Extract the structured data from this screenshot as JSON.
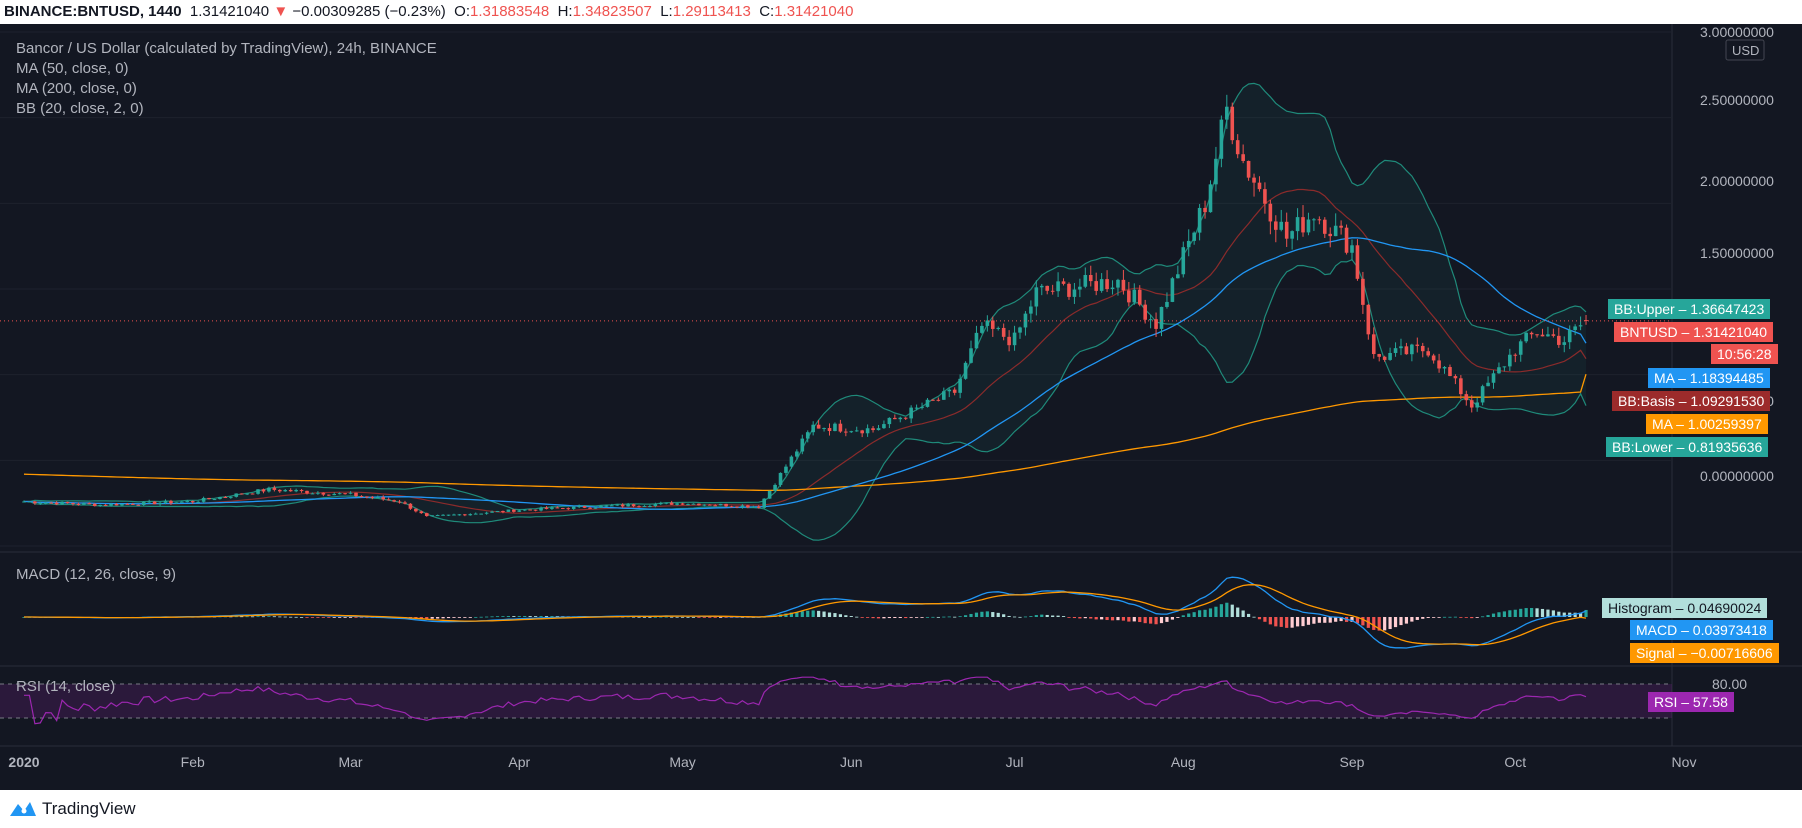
{
  "header": {
    "symbol": "BINANCE:BNTUSD, 1440",
    "last": "1.31421040",
    "arrow": "▼",
    "change": "−0.00309285 (−0.23%)",
    "o_label": "O:",
    "o": "1.31883548",
    "h_label": "H:",
    "h": "1.34823507",
    "l_label": "L:",
    "l": "1.29113413",
    "c_label": "C:",
    "c": "1.31421040"
  },
  "legend": {
    "title": "Bancor / US Dollar (calculated by TradingView), 24h, BINANCE",
    "ma50": "MA (50, close, 0)",
    "ma200": "MA (200, close, 0)",
    "bb": "BB (20, close, 2, 0)",
    "macd": "MACD (12, 26, close, 9)",
    "rsi": "RSI (14, close)"
  },
  "price_axis": {
    "currency": "USD",
    "ticks": [
      "3.00000000",
      "2.50000000",
      "2.00000000",
      "1.50000000",
      "0.50000000",
      "0.00000000"
    ]
  },
  "rsi_axis": {
    "tick": "80.00"
  },
  "time_axis": [
    "2020",
    "Feb",
    "Mar",
    "Apr",
    "May",
    "Jun",
    "Jul",
    "Aug",
    "Sep",
    "Oct",
    "Nov"
  ],
  "price_tags": [
    {
      "text": "BB:Upper – 1.36647423",
      "bg": "#26a69a"
    },
    {
      "text": "BNTUSD – 1.31421040",
      "bg": "#ef5350"
    },
    {
      "text": "10:56:28",
      "bg": "#ef5350"
    },
    {
      "text": "MA – 1.18394485",
      "bg": "#2196f3"
    },
    {
      "text": "BB:Basis – 1.09291530",
      "bg": "#9c2b2b"
    },
    {
      "text": "MA – 1.00259397",
      "bg": "#ff9800"
    },
    {
      "text": "BB:Lower – 0.81935636",
      "bg": "#26a69a"
    }
  ],
  "macd_tags": [
    {
      "text": "Histogram – 0.04690024",
      "bg": "#b2dfdb",
      "fg": "#131722"
    },
    {
      "text": "MACD – 0.03973418",
      "bg": "#2196f3",
      "fg": "#ffffff"
    },
    {
      "text": "Signal – −0.00716606",
      "bg": "#ff9800",
      "fg": "#ffffff"
    }
  ],
  "rsi_tag": {
    "text": "RSI – 57.58",
    "bg": "#9c27b0"
  },
  "footer": {
    "brand": "TradingView"
  },
  "colors": {
    "up": "#26a69a",
    "down": "#ef5350",
    "ma50": "#2196f3",
    "ma200": "#ff9800",
    "bb_band": "#1f8a7a",
    "bb_basis": "#8b2b2b",
    "rsi": "#9c27b0"
  },
  "chart_data": {
    "type": "candlestick",
    "x_range": [
      "2020-01-01",
      "2020-11-01"
    ],
    "y_range": [
      0,
      3.0
    ],
    "close_path": [
      {
        "date": "2020-01-01",
        "close": 0.26
      },
      {
        "date": "2020-01-15",
        "close": 0.24
      },
      {
        "date": "2020-02-01",
        "close": 0.26
      },
      {
        "date": "2020-02-15",
        "close": 0.33
      },
      {
        "date": "2020-03-01",
        "close": 0.3
      },
      {
        "date": "2020-03-10",
        "close": 0.26
      },
      {
        "date": "2020-03-15",
        "close": 0.17
      },
      {
        "date": "2020-04-01",
        "close": 0.21
      },
      {
        "date": "2020-04-15",
        "close": 0.23
      },
      {
        "date": "2020-05-01",
        "close": 0.25
      },
      {
        "date": "2020-05-15",
        "close": 0.23
      },
      {
        "date": "2020-05-25",
        "close": 0.7
      },
      {
        "date": "2020-06-05",
        "close": 0.68
      },
      {
        "date": "2020-06-20",
        "close": 0.9
      },
      {
        "date": "2020-06-25",
        "close": 1.28
      },
      {
        "date": "2020-07-01",
        "close": 1.2
      },
      {
        "date": "2020-07-05",
        "close": 1.48
      },
      {
        "date": "2020-07-20",
        "close": 1.55
      },
      {
        "date": "2020-07-27",
        "close": 1.3
      },
      {
        "date": "2020-08-05",
        "close": 2.0
      },
      {
        "date": "2020-08-09",
        "close": 2.55
      },
      {
        "date": "2020-08-12",
        "close": 2.25
      },
      {
        "date": "2020-08-20",
        "close": 1.8
      },
      {
        "date": "2020-08-25",
        "close": 1.95
      },
      {
        "date": "2020-09-01",
        "close": 1.75
      },
      {
        "date": "2020-09-05",
        "close": 1.1
      },
      {
        "date": "2020-09-15",
        "close": 1.15
      },
      {
        "date": "2020-09-23",
        "close": 0.82
      },
      {
        "date": "2020-10-01",
        "close": 1.15
      },
      {
        "date": "2020-10-05",
        "close": 1.25
      },
      {
        "date": "2020-10-10",
        "close": 1.2
      },
      {
        "date": "2020-10-14",
        "close": 1.3142
      }
    ],
    "last": {
      "open": 1.31883548,
      "high": 1.34823507,
      "low": 1.29113413,
      "close": 1.3142104
    },
    "indicators": {
      "bb_upper": 1.36647423,
      "bb_basis": 1.0929153,
      "bb_lower": 0.81935636,
      "ma50": 1.18394485,
      "ma200": 1.00259397,
      "macd": 0.03973418,
      "signal": -0.00716606,
      "histogram": 0.04690024,
      "rsi": 57.58
    }
  }
}
